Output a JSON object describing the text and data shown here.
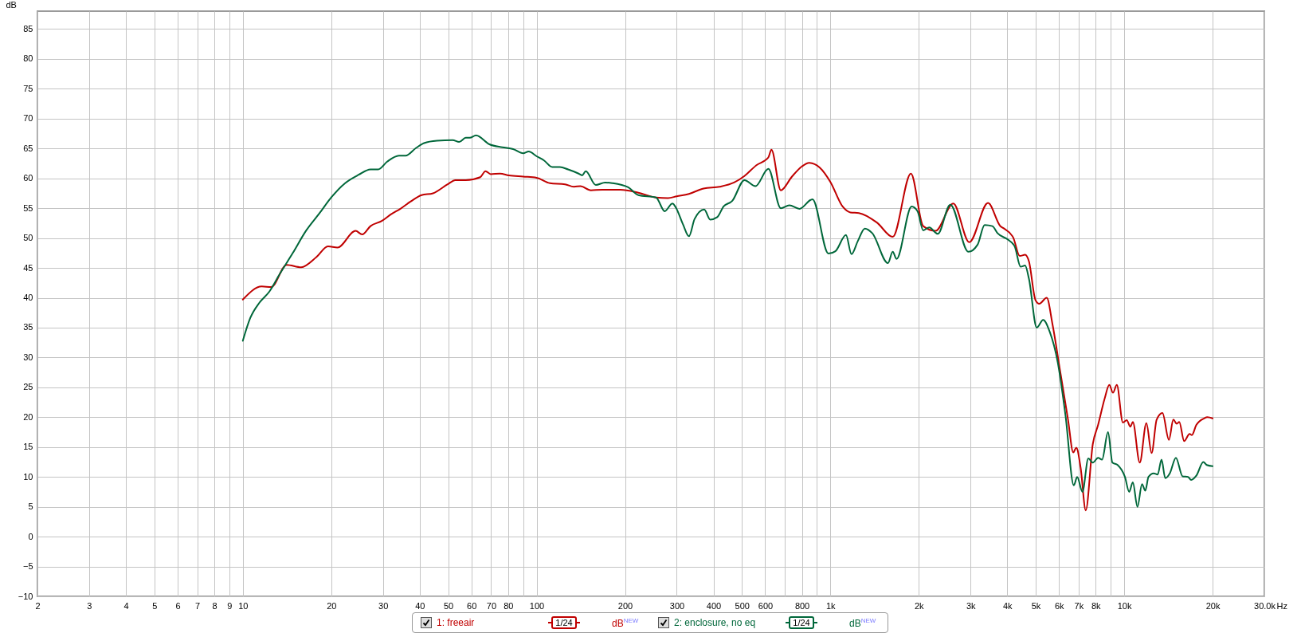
{
  "chart_data": {
    "type": "line",
    "ylabel": "dB",
    "log": "x",
    "grid": true,
    "legend": "bottom",
    "line_style": "solid",
    "marker": "none",
    "xlim": [
      2,
      30000
    ],
    "ylim": [
      -10,
      88
    ],
    "xticks": [
      2,
      3,
      4,
      5,
      6,
      7,
      8,
      9,
      10,
      20,
      30,
      40,
      50,
      60,
      70,
      80,
      {
        "value": 90,
        "label": null
      },
      100,
      200,
      300,
      400,
      500,
      600,
      {
        "value": 700,
        "label": null
      },
      800,
      {
        "value": 900,
        "label": null
      },
      {
        "value": 1000,
        "label": "1k"
      },
      {
        "value": 2000,
        "label": "2k"
      },
      {
        "value": 3000,
        "label": "3k"
      },
      {
        "value": 4000,
        "label": "4k"
      },
      {
        "value": 5000,
        "label": "5k"
      },
      {
        "value": 6000,
        "label": "6k"
      },
      {
        "value": 7000,
        "label": "7k"
      },
      {
        "value": 8000,
        "label": "8k"
      },
      {
        "value": 9000,
        "label": null
      },
      {
        "value": 10000,
        "label": "10k"
      },
      {
        "value": 20000,
        "label": "20k"
      },
      {
        "value": 30000,
        "label": "30.0k"
      }
    ],
    "xlabel": "Hz",
    "yticks": [
      -10,
      -5,
      0,
      5,
      10,
      15,
      20,
      25,
      30,
      35,
      40,
      45,
      50,
      55,
      60,
      65,
      70,
      75,
      80,
      85
    ],
    "annotations": [
      "1/24",
      "dB$^{NEW}$",
      "1/24",
      "dB$^{NEW}$"
    ],
    "series": [
      {
        "name": "1: freeair",
        "color": "#c00000",
        "x": [
          10,
          11.6,
          12.5,
          14.1,
          15.8,
          17.8,
          19.5,
          21,
          24.2,
          25.5,
          27.2,
          29.8,
          32,
          34.4,
          37.2,
          40.6,
          44.4,
          49.8,
          52.9,
          57.4,
          64.3,
          67,
          69.8,
          75,
          80.5,
          90,
          100,
          111,
          125,
          134,
          141,
          153,
          167,
          193,
          222,
          255,
          280,
          300,
          330,
          370,
          420,
          470,
          510,
          560,
          615,
          630,
          678,
          740,
          800,
          847,
          920,
          1000,
          1100,
          1170,
          1250,
          1440,
          1630,
          1880,
          2070,
          2280,
          2620,
          2970,
          3440,
          3790,
          3870,
          4190,
          4410,
          4600,
          4740,
          4990,
          5140,
          5450,
          5700,
          6060,
          6440,
          6710,
          6870,
          7110,
          7400,
          7820,
          8150,
          8580,
          8900,
          9160,
          9440,
          9900,
          10200,
          10500,
          10700,
          11300,
          11900,
          12400,
          12900,
          13500,
          14200,
          14700,
          15100,
          15400,
          16000,
          16700,
          17000,
          17600,
          18700,
          19200,
          20000
        ],
        "values": [
          39.7,
          41.9,
          41.8,
          45.5,
          45.1,
          46.8,
          48.6,
          48.4,
          51.2,
          50.6,
          52,
          52.9,
          54,
          54.9,
          56.1,
          57.2,
          57.5,
          59,
          59.7,
          59.7,
          60.2,
          61.2,
          60.7,
          60.8,
          60.5,
          60.3,
          60.1,
          59.2,
          59,
          58.6,
          58.7,
          58,
          58.1,
          58.1,
          57.6,
          56.8,
          56.7,
          57,
          57.4,
          58.3,
          58.6,
          59.3,
          60.4,
          62.2,
          63.5,
          64.8,
          58,
          60.3,
          62,
          62.6,
          61.8,
          59.4,
          55.3,
          54.3,
          54.2,
          52.6,
          50.2,
          60.8,
          52,
          51.2,
          55.8,
          49.3,
          55.9,
          52,
          51.7,
          50.1,
          47,
          47.2,
          46.1,
          39.6,
          39,
          40,
          35.6,
          27.6,
          19.6,
          14.1,
          14.9,
          11.5,
          4.4,
          15.5,
          18.7,
          23.1,
          25.4,
          24.1,
          25.4,
          19.1,
          19.5,
          18.4,
          19.2,
          12.4,
          19,
          14,
          19.6,
          20.7,
          16.2,
          19.6,
          18.9,
          19.2,
          16,
          17.2,
          17,
          18.7,
          19.8,
          20,
          19.8
        ]
      },
      {
        "name": "2: enclosure, no eq",
        "color": "#00673a",
        "x": [
          10,
          10.6,
          11.4,
          12.3,
          13.4,
          14.8,
          16.4,
          18.2,
          20,
          22.3,
          24.8,
          27.2,
          28.9,
          31,
          34,
          35.8,
          38.9,
          41.4,
          45.8,
          51.8,
          54.5,
          57.4,
          59.2,
          62.2,
          69.1,
          76.5,
          83.2,
          90,
          94,
          100,
          106,
          113,
          120,
          128,
          139,
          143,
          147,
          159,
          171,
          181,
          205,
          222,
          255,
          273,
          290,
          298,
          315,
          330,
          345,
          372,
          390,
          412,
          433,
          463,
          510,
          556,
          615,
          678,
          725,
          785,
          869,
          985,
          1040,
          1130,
          1180,
          1240,
          1310,
          1390,
          1570,
          1630,
          1680,
          1890,
          1980,
          2070,
          2170,
          2320,
          2560,
          2950,
          3170,
          3350,
          3560,
          3710,
          4030,
          4240,
          4440,
          4600,
          4740,
          5040,
          5300,
          5580,
          5940,
          6310,
          6740,
          6920,
          7210,
          7550,
          7820,
          8150,
          8410,
          8810,
          9120,
          9500,
          10060,
          10400,
          10700,
          11100,
          11500,
          11800,
          12100,
          12600,
          13000,
          13400,
          13800,
          14300,
          15000,
          15800,
          16500,
          16900,
          17600,
          18600,
          19100,
          20000
        ],
        "values": [
          32.8,
          36.6,
          39.2,
          41,
          44.1,
          47.5,
          51.2,
          54.1,
          56.8,
          59.2,
          60.6,
          61.5,
          61.5,
          62.8,
          63.8,
          63.8,
          65.1,
          65.9,
          66.3,
          66.4,
          66.1,
          66.8,
          66.8,
          67.2,
          65.7,
          65.2,
          64.9,
          64.2,
          64.5,
          63.7,
          63,
          61.9,
          61.9,
          61.5,
          60.8,
          60.5,
          61.2,
          58.9,
          59.3,
          59.2,
          58.5,
          57.2,
          56.8,
          54.5,
          55.8,
          55.1,
          52.3,
          50.3,
          53.2,
          54.8,
          53.1,
          53.5,
          55.3,
          56.2,
          59.7,
          58.7,
          61.6,
          55,
          55.5,
          54.9,
          56.5,
          47.4,
          47.8,
          50.5,
          47.3,
          49.5,
          51.6,
          50.8,
          45.8,
          47.7,
          46.5,
          55.3,
          54.5,
          51.3,
          51.8,
          50.7,
          55.6,
          47.7,
          48.9,
          52.2,
          52,
          50.8,
          49.7,
          48.6,
          45.2,
          45.4,
          43.2,
          35,
          36.3,
          34.3,
          29.2,
          20.4,
          8.6,
          10,
          7.5,
          13.1,
          12.4,
          13.2,
          12.9,
          17.5,
          12.4,
          12,
          10,
          7.5,
          9.1,
          5,
          8.8,
          7.7,
          10,
          10.6,
          10.4,
          12.9,
          9.8,
          10.6,
          13.2,
          10.1,
          10,
          9.5,
          10.2,
          12.5,
          12,
          11.8
        ]
      }
    ]
  }
}
